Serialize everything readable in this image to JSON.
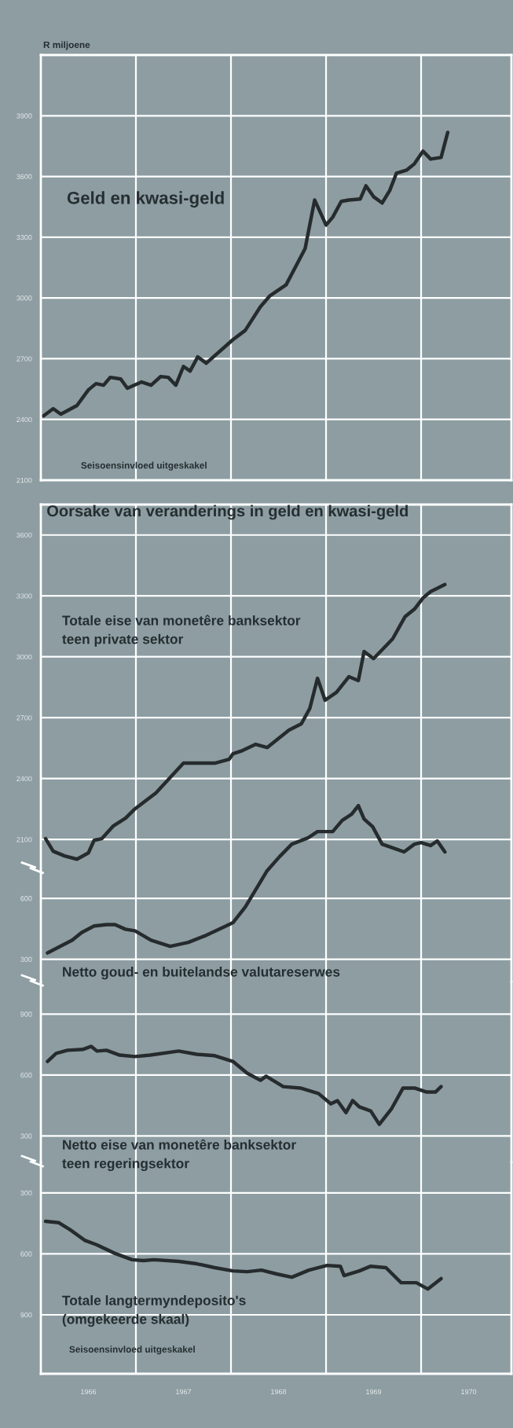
{
  "chart_data": [
    {
      "type": "line",
      "title": "Geld en kwasi-geld",
      "ylabel": "R miljoene",
      "annotations": [
        "Seisoensinvloed uitgeskakel"
      ],
      "grid": true,
      "tick_labels": "y",
      "xlim": [
        1966,
        1970.95
      ],
      "xticks": [
        {
          "value": 1967,
          "label": null
        },
        {
          "value": 1968,
          "label": null
        },
        {
          "value": 1969,
          "label": null
        },
        {
          "value": 1970,
          "label": null
        }
      ],
      "ylim": [
        2100,
        4200
      ],
      "yticks": [
        2100,
        2400,
        2700,
        3000,
        3300,
        3600,
        3900
      ],
      "series": [
        {
          "color": "#262b2d",
          "x": [
            1966.03,
            1966.13,
            1966.21,
            1966.38,
            1966.5,
            1966.58,
            1966.66,
            1966.73,
            1966.84,
            1966.91,
            1967.06,
            1967.16,
            1967.26,
            1967.34,
            1967.42,
            1967.5,
            1967.57,
            1967.65,
            1967.74,
            1968.02,
            1968.15,
            1968.31,
            1968.41,
            1968.58,
            1968.78,
            1968.88,
            1969.0,
            1969.07,
            1969.16,
            1969.24,
            1969.36,
            1969.42,
            1969.5,
            1969.59,
            1969.67,
            1969.74,
            1969.85,
            1969.93,
            1970.02,
            1970.1,
            1970.21,
            1970.28
          ],
          "values": [
            2418,
            2453,
            2426,
            2469,
            2546,
            2577,
            2569,
            2608,
            2600,
            2554,
            2585,
            2569,
            2612,
            2608,
            2569,
            2662,
            2639,
            2709,
            2678,
            2794,
            2840,
            2957,
            3011,
            3065,
            3244,
            3484,
            3360,
            3399,
            3477,
            3484,
            3489,
            3554,
            3500,
            3469,
            3531,
            3616,
            3632,
            3663,
            3725,
            3686,
            3694,
            3818
          ]
        }
      ]
    },
    {
      "type": "line",
      "title": "Oorsake van veranderings in geld en kwasi-geld",
      "grid": true,
      "tick_labels": "y",
      "xlim": [
        1966,
        1970.95
      ],
      "xticks": [
        {
          "value": 1967,
          "label": null
        },
        {
          "value": 1968,
          "label": null
        },
        {
          "value": 1969,
          "label": null
        },
        {
          "value": 1970,
          "label": null
        }
      ],
      "ylim": [
        1400,
        3750
      ],
      "yticks": [
        2100,
        2400,
        2700,
        3000,
        3300,
        3600
      ],
      "y2lim": [
        190,
        2540
      ],
      "y2ticks": [
        300,
        600
      ],
      "series": [
        {
          "name": "Totale eise van monetêre banksektor\nteen private sektor",
          "color": "#262b2d",
          "x": [
            1966.05,
            1966.13,
            1966.25,
            1966.38,
            1966.5,
            1966.56,
            1966.64,
            1966.76,
            1966.89,
            1966.99,
            1967.21,
            1967.5,
            1967.83,
            1967.98,
            1968.02,
            1968.12,
            1968.26,
            1968.38,
            1968.61,
            1968.74,
            1968.83,
            1968.91,
            1968.99,
            1969.11,
            1969.24,
            1969.34,
            1969.4,
            1969.5,
            1969.7,
            1969.83,
            1969.93,
            1970.02,
            1970.1,
            1970.25
          ],
          "values": [
            2104,
            2042,
            2019,
            2003,
            2034,
            2096,
            2104,
            2166,
            2205,
            2251,
            2329,
            2476,
            2476,
            2495,
            2522,
            2538,
            2569,
            2553,
            2639,
            2670,
            2747,
            2894,
            2786,
            2825,
            2902,
            2883,
            3026,
            2991,
            3088,
            3197,
            3235,
            3290,
            3321,
            3356
          ]
        },
        {
          "name": "Netto goud- en buitelandse valutareserwes",
          "color": "#262b2d",
          "axis": "y2",
          "x": [
            1966.07,
            1966.23,
            1966.33,
            1966.43,
            1966.56,
            1966.69,
            1966.78,
            1966.89,
            1966.99,
            1967.16,
            1967.36,
            1967.55,
            1967.74,
            1967.93,
            1968.02,
            1968.15,
            1968.25,
            1968.38,
            1968.51,
            1968.64,
            1968.81,
            1968.91,
            1969.07,
            1969.17,
            1969.27,
            1969.34,
            1969.4,
            1969.49,
            1969.59,
            1969.82,
            1969.93,
            1970.0,
            1970.1,
            1970.17,
            1970.25
          ],
          "values": [
            331,
            370,
            394,
            432,
            464,
            471,
            471,
            448,
            440,
            394,
            364,
            383,
            418,
            460,
            480,
            557,
            635,
            736,
            805,
            867,
            898,
            929,
            929,
            984,
            1015,
            1057,
            991,
            953,
            867,
            829,
            867,
            875,
            860,
            883,
            829
          ]
        }
      ]
    },
    {
      "type": "line",
      "grid": true,
      "tick_labels": "y",
      "xlim": [
        1966,
        1970.95
      ],
      "xticks": [
        {
          "value": 1967,
          "label": null
        },
        {
          "value": 1968,
          "label": null
        },
        {
          "value": 1969,
          "label": null
        },
        {
          "value": 1970,
          "label": null
        }
      ],
      "ylim": [
        170,
        1060
      ],
      "yticks": [
        300,
        600,
        900
      ],
      "series": [
        {
          "name": "Netto eise van monetêre banksektor\nteen regeringsektor",
          "color": "#262b2d",
          "x": [
            1966.07,
            1966.16,
            1966.28,
            1966.44,
            1966.53,
            1966.59,
            1966.69,
            1966.83,
            1966.99,
            1967.15,
            1967.45,
            1967.64,
            1967.83,
            1968.02,
            1968.17,
            1968.31,
            1968.37,
            1968.55,
            1968.73,
            1968.92,
            1969.05,
            1969.12,
            1969.21,
            1969.28,
            1969.35,
            1969.47,
            1969.56,
            1969.69,
            1969.81,
            1969.93,
            1970.06,
            1970.15,
            1970.21
          ],
          "values": [
            667,
            706,
            722,
            726,
            741,
            718,
            722,
            698,
            691,
            698,
            718,
            702,
            695,
            667,
            609,
            574,
            594,
            543,
            536,
            509,
            458,
            474,
            415,
            474,
            443,
            423,
            357,
            435,
            536,
            536,
            516,
            516,
            543
          ]
        }
      ]
    },
    {
      "type": "line",
      "annotations": [
        "Seisoensinvloed uitgeskakel"
      ],
      "grid": true,
      "xlim": [
        1966,
        1970.95
      ],
      "xticks": [
        {
          "value": 1967,
          "label": null
        },
        {
          "value": 1968,
          "label": null
        },
        {
          "value": 1969,
          "label": null
        },
        {
          "value": 1970,
          "label": null
        },
        {
          "value": 1966.5,
          "label": "1966"
        },
        {
          "value": 1967.5,
          "label": "1967"
        },
        {
          "value": 1968.5,
          "label": "1968"
        },
        {
          "value": 1969.5,
          "label": "1969"
        },
        {
          "value": 1970.5,
          "label": "1970"
        }
      ],
      "ylim": [
        1190,
        150
      ],
      "yticks": [
        300,
        600,
        900
      ],
      "series": [
        {
          "name": "Totale langtermyndeposito's\n(omgekeerde skaal)",
          "color": "#262b2d",
          "x": [
            1966.05,
            1966.19,
            1966.31,
            1966.46,
            1966.59,
            1966.78,
            1966.96,
            1967.08,
            1967.19,
            1967.45,
            1967.64,
            1967.83,
            1968.02,
            1968.17,
            1968.32,
            1968.48,
            1968.64,
            1968.82,
            1969.01,
            1969.15,
            1969.19,
            1969.35,
            1969.47,
            1969.63,
            1969.79,
            1969.95,
            1970.07,
            1970.21
          ],
          "values": [
            440,
            447,
            482,
            533,
            556,
            598,
            629,
            633,
            629,
            637,
            649,
            668,
            684,
            688,
            680,
            699,
            715,
            680,
            657,
            661,
            707,
            684,
            661,
            668,
            742,
            742,
            773,
            722
          ]
        }
      ]
    }
  ]
}
